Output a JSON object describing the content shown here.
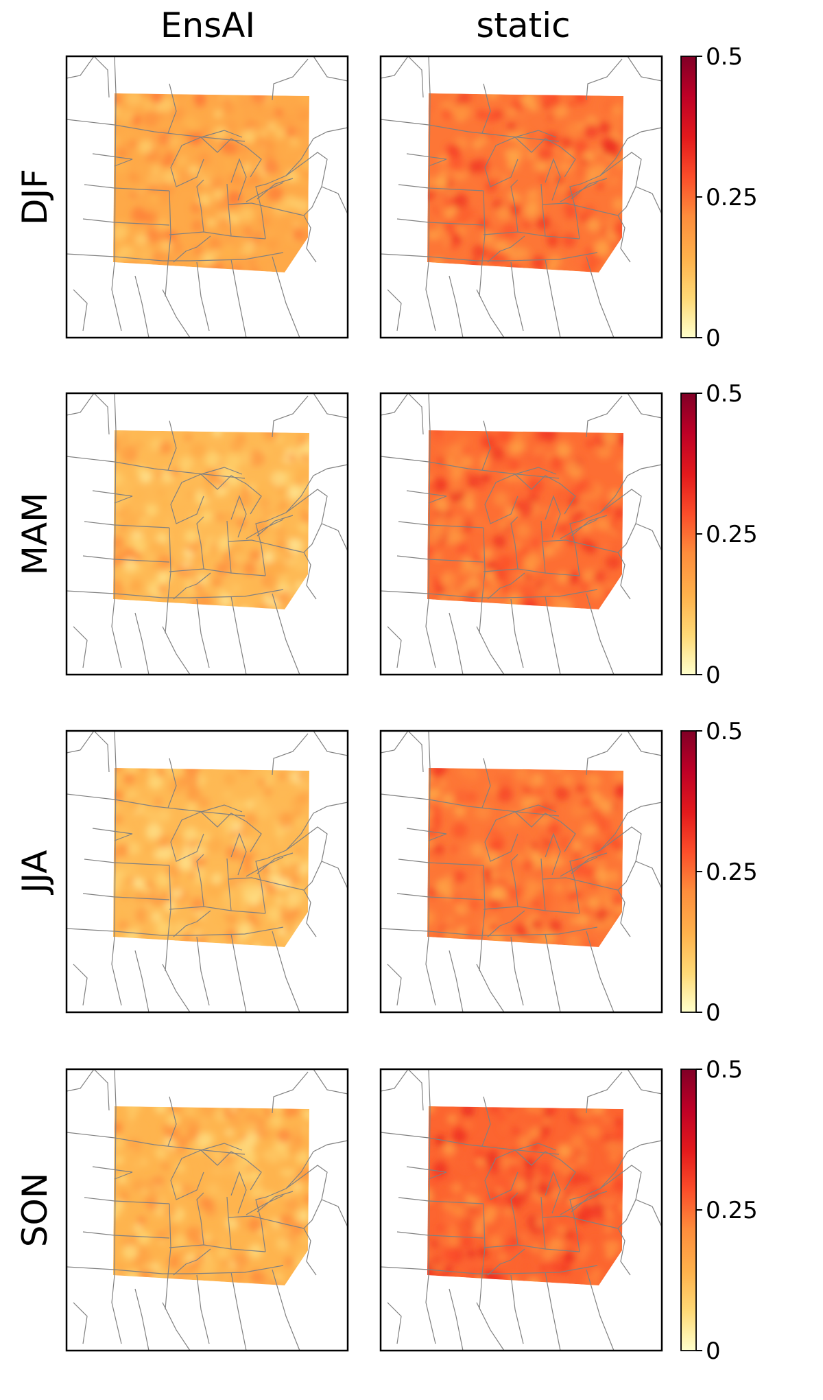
{
  "chart_data": {
    "type": "heatmap",
    "columns": [
      "EnsAI",
      "static"
    ],
    "rows": [
      "DJF",
      "MAM",
      "JJA",
      "SON"
    ],
    "colorbar": {
      "range": [
        0,
        0.5
      ],
      "ticks": [
        0,
        0.25,
        0.5
      ],
      "tick_labels": [
        "0",
        "0.25",
        "0.5"
      ],
      "colors": [
        "#ffffcc",
        "#fed976",
        "#feb24c",
        "#fd8d3c",
        "#fc4e2a",
        "#e31a1c",
        "#bd0026",
        "#800026"
      ]
    },
    "panels": [
      {
        "row": "DJF",
        "column": "EnsAI",
        "mean_value": 0.16
      },
      {
        "row": "DJF",
        "column": "static",
        "mean_value": 0.24
      },
      {
        "row": "MAM",
        "column": "EnsAI",
        "mean_value": 0.13
      },
      {
        "row": "MAM",
        "column": "static",
        "mean_value": 0.25
      },
      {
        "row": "JJA",
        "column": "EnsAI",
        "mean_value": 0.13
      },
      {
        "row": "JJA",
        "column": "static",
        "mean_value": 0.24
      },
      {
        "row": "SON",
        "column": "EnsAI",
        "mean_value": 0.14
      },
      {
        "row": "SON",
        "column": "static",
        "mean_value": 0.26
      }
    ]
  }
}
